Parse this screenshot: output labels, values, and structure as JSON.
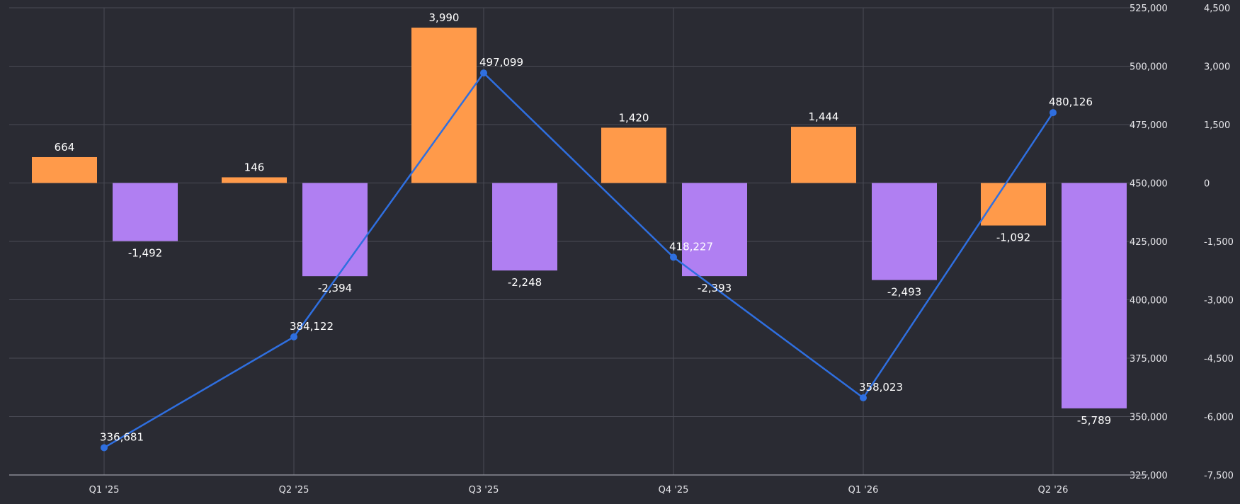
{
  "chart_data": {
    "type": "bar",
    "categories": [
      "Q1 '25",
      "Q2 '25",
      "Q3 '25",
      "Q4 '25",
      "Q1 '26",
      "Q2 '26"
    ],
    "series": [
      {
        "type": "bar",
        "axis": "right",
        "color": "#ff9a4a",
        "values": [
          664,
          146,
          3990,
          1420,
          1444,
          -1092
        ]
      },
      {
        "type": "bar",
        "axis": "right",
        "color": "#b07ff2",
        "values": [
          -1492,
          -2394,
          -2248,
          -2393,
          -2493,
          -5789
        ]
      },
      {
        "type": "line",
        "axis": "left",
        "color": "#2f6fe0",
        "values": [
          336681,
          384122,
          497099,
          418227,
          358023,
          480126
        ]
      }
    ],
    "y_left": {
      "min": 325000,
      "max": 525000,
      "ticks": [
        325000,
        350000,
        375000,
        400000,
        425000,
        450000,
        475000,
        500000,
        525000
      ],
      "tick_labels": [
        "325,000",
        "350,000",
        "375,000",
        "400,000",
        "425,000",
        "450,000",
        "475,000",
        "500,000",
        "525,000"
      ]
    },
    "y_right": {
      "min": -7500,
      "max": 4500,
      "ticks": [
        -7500,
        -6000,
        -4500,
        -3000,
        -1500,
        0,
        1500,
        3000,
        4500
      ],
      "tick_labels": [
        "-7,500",
        "-6,000",
        "-4,500",
        "-3,000",
        "-1,500",
        "0",
        "1,500",
        "3,000",
        "4,500"
      ]
    },
    "grid": true,
    "legend": false,
    "colors": {
      "background": "#2a2b33",
      "grid": "#4a4b55",
      "axis_line": "#8a8b95",
      "text": "#e6e6ea"
    }
  }
}
